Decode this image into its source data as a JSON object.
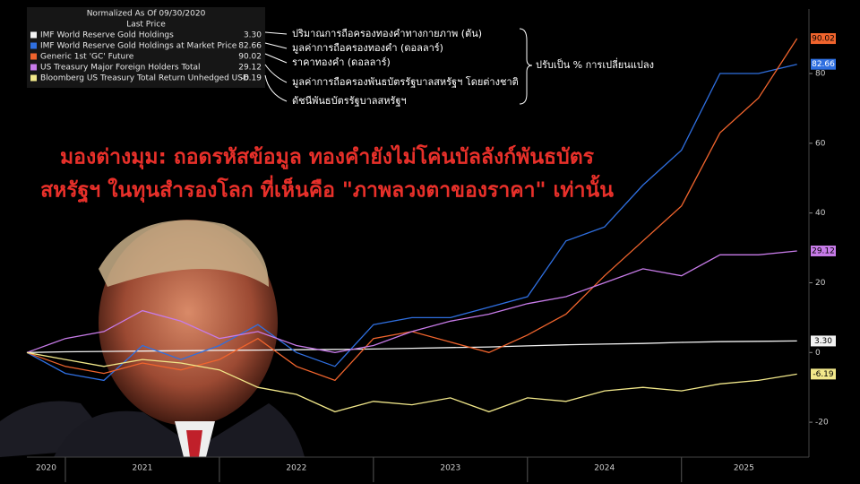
{
  "chart_data": {
    "type": "line",
    "legend_header": "Normalized As Of 09/30/2020",
    "legend_subheader": "Last Price",
    "headline": [
      "มองต่างมุม: ถอดรหัสข้อมูล ทองคำยังไม่โค่นบัลลังก์พันธบัตร",
      "สหรัฐฯ ในทุนสำรองโลก ที่เห็นคือ \"ภาพลวงตาของราคา\" เท่านั้น"
    ],
    "annotations": [
      "ปริมาณการถือครองทองคำทางกายภาพ (ตัน)",
      "มูลค่าการถือครองทองคำ (ดอลลาร์)",
      "ราคาทองคำ (ดอลลาร์)",
      "มูลค่าการถือครองพันธบัตรรัฐบาลสหรัฐฯ โดยต่างชาติ",
      "ดัชนีพันธบัตรรัฐบาลสหรัฐฯ"
    ],
    "side_note": "ปรับเป็น % การเปลี่ยนแปลง",
    "x": [
      2020.75,
      2021.0,
      2021.25,
      2021.5,
      2021.75,
      2022.0,
      2022.25,
      2022.5,
      2022.75,
      2023.0,
      2023.25,
      2023.5,
      2023.75,
      2024.0,
      2024.25,
      2024.5,
      2024.75,
      2025.0,
      2025.25,
      2025.5,
      2025.75
    ],
    "xlim": [
      2020.75,
      2025.81
    ],
    "xticks": [
      2020,
      2021,
      2022,
      2023,
      2024,
      2025
    ],
    "ylim": [
      -30,
      98
    ],
    "yticks": [
      -20,
      0,
      20,
      40,
      60,
      80
    ],
    "series": [
      {
        "name": "IMF World Reserve Gold Holdings",
        "color": "#f2f2f2",
        "values": [
          0,
          0.2,
          0.3,
          0.4,
          0.5,
          0.6,
          0.7,
          0.8,
          0.9,
          1.0,
          1.2,
          1.4,
          1.6,
          1.9,
          2.2,
          2.4,
          2.6,
          2.9,
          3.1,
          3.2,
          3.3
        ],
        "value_labels": [
          null,
          null,
          null,
          null,
          null,
          null,
          null,
          null,
          null,
          null,
          null,
          null,
          null,
          null,
          null,
          null,
          null,
          null,
          null,
          null,
          "3.30"
        ]
      },
      {
        "name": "IMF World Reserve Gold Holdings at Market Price",
        "color": "#2f6fe0",
        "values": [
          0,
          -6,
          -8,
          2,
          -2,
          2,
          8,
          0,
          -4,
          8,
          10,
          10,
          13,
          16,
          32,
          36,
          48,
          58,
          80,
          80,
          82.66
        ],
        "value_labels": [
          null,
          null,
          null,
          null,
          null,
          null,
          null,
          null,
          null,
          null,
          null,
          null,
          null,
          null,
          null,
          null,
          null,
          null,
          null,
          null,
          "82.66"
        ]
      },
      {
        "name": "Generic 1st 'GC' Future",
        "color": "#f0642d",
        "values": [
          0,
          -4,
          -6,
          -3,
          -5,
          -2,
          4,
          -4,
          -8,
          4,
          6,
          3,
          0,
          5,
          11,
          22,
          32,
          42,
          63,
          73,
          90.02
        ],
        "value_labels": [
          null,
          null,
          null,
          null,
          null,
          null,
          null,
          null,
          null,
          null,
          null,
          null,
          null,
          null,
          null,
          null,
          null,
          null,
          null,
          null,
          "90.02"
        ]
      },
      {
        "name": "US Treasury Major Foreign Holders Total",
        "color": "#c77be8",
        "values": [
          0,
          4,
          6,
          12,
          9,
          4,
          6,
          2,
          0,
          2,
          6,
          9,
          11,
          14,
          16,
          20,
          24,
          22,
          28,
          28,
          29.12
        ],
        "value_labels": [
          null,
          null,
          null,
          null,
          null,
          null,
          null,
          null,
          null,
          null,
          null,
          null,
          null,
          null,
          null,
          null,
          null,
          null,
          null,
          null,
          "29.12"
        ]
      },
      {
        "name": "Bloomberg US Treasury Total Return Unhedged USD",
        "color": "#f2e88a",
        "values": [
          0,
          -2,
          -4,
          -2,
          -3,
          -5,
          -10,
          -12,
          -17,
          -14,
          -15,
          -13,
          -17,
          -13,
          -14,
          -11,
          -10,
          -11,
          -9,
          -8,
          -6.19
        ],
        "value_labels": [
          null,
          null,
          null,
          null,
          null,
          null,
          null,
          null,
          null,
          null,
          null,
          null,
          null,
          null,
          null,
          null,
          null,
          null,
          null,
          null,
          "-6.19"
        ]
      }
    ]
  }
}
